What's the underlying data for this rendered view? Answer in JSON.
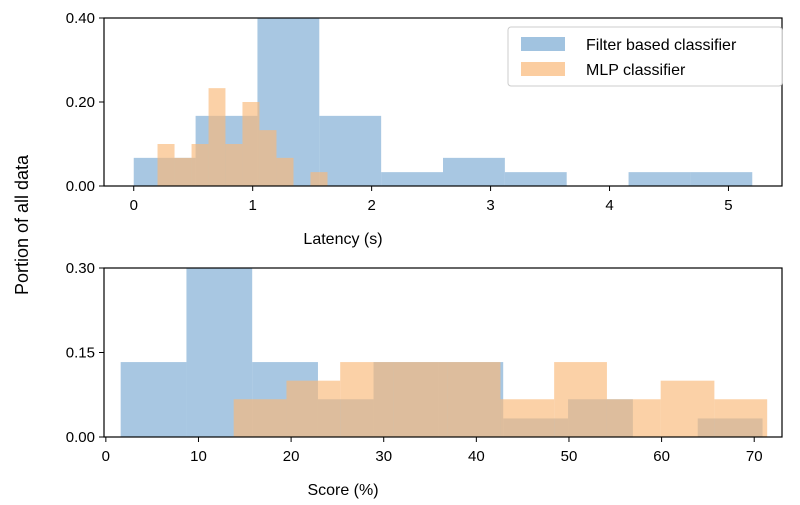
{
  "shared_ylabel": "Portion of all data",
  "colors": {
    "filter": "#79a9d3",
    "mlp": "#f9b878"
  },
  "legend": {
    "placement": "top-right",
    "filter_label": "Filter based classifier",
    "mlp_label": "MLP classifier"
  },
  "chart_data": [
    {
      "type": "histogram",
      "xlabel": "Latency (s)",
      "ylabel": "Portion of all data",
      "xlim": [
        -0.25,
        5.45
      ],
      "ylim": [
        0,
        0.4
      ],
      "xticks": [
        "0",
        "1",
        "2",
        "3",
        "4",
        "5"
      ],
      "xtick_values": [
        0,
        1,
        2,
        3,
        4,
        5
      ],
      "yticks": [
        "0.00",
        "0.20",
        "0.40"
      ],
      "ytick_values": [
        0,
        0.2,
        0.4
      ],
      "series": [
        {
          "name": "Filter based classifier",
          "color": "#79a9d3",
          "edges": [
            0,
            0.52,
            1.04,
            1.56,
            2.08,
            2.6,
            3.12,
            3.64,
            4.16,
            4.68,
            5.2
          ],
          "values": [
            0.067,
            0.167,
            0.4,
            0.167,
            0.033,
            0.067,
            0.033,
            0.0,
            0.033,
            0.033
          ]
        },
        {
          "name": "MLP classifier",
          "color": "#f9b878",
          "edges": [
            0.2,
            0.343,
            0.486,
            0.629,
            0.771,
            0.914,
            1.057,
            1.2,
            1.343,
            1.486,
            1.629
          ],
          "values": [
            0.1,
            0.067,
            0.1,
            0.233,
            0.1,
            0.2,
            0.133,
            0.067,
            0.0,
            0.033
          ]
        }
      ]
    },
    {
      "type": "histogram",
      "xlabel": "Score (%)",
      "ylabel": "Portion of all data",
      "xlim": [
        -0.2,
        73.0
      ],
      "ylim": [
        0,
        0.3
      ],
      "xticks": [
        "0",
        "10",
        "20",
        "30",
        "40",
        "50",
        "60",
        "70"
      ],
      "xtick_values": [
        0,
        10,
        20,
        30,
        40,
        50,
        60,
        70
      ],
      "yticks": [
        "0.00",
        "0.15",
        "0.30"
      ],
      "ytick_values": [
        0,
        0.15,
        0.3
      ],
      "series": [
        {
          "name": "Filter based classifier",
          "color": "#79a9d3",
          "edges": [
            1.6,
            8.7,
            15.8,
            22.9,
            28.9,
            35.9,
            42.9,
            49.9,
            56.9,
            63.9,
            70.9
          ],
          "values": [
            0.133,
            0.3,
            0.133,
            0.067,
            0.133,
            0.133,
            0.033,
            0.067,
            0.0,
            0.033
          ]
        },
        {
          "name": "MLP classifier",
          "color": "#f9b878",
          "edges": [
            13.8,
            19.5,
            25.3,
            31.1,
            36.9,
            42.6,
            48.4,
            54.1,
            59.9,
            65.7,
            71.4
          ],
          "values": [
            0.067,
            0.1,
            0.133,
            0.133,
            0.133,
            0.067,
            0.133,
            0.067,
            0.1,
            0.067
          ]
        }
      ]
    }
  ]
}
